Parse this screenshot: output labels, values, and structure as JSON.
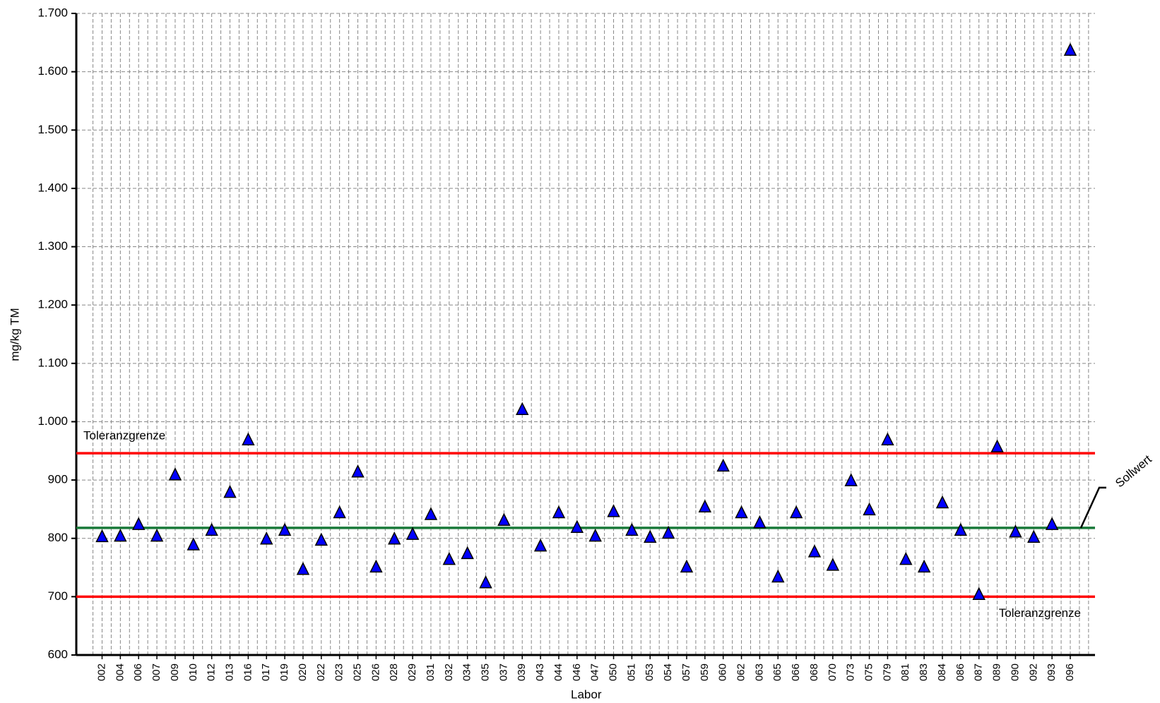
{
  "chart_data": {
    "type": "scatter",
    "xlabel": "Labor",
    "ylabel": "mg/kg TM",
    "categories": [
      "002",
      "004",
      "006",
      "007",
      "009",
      "010",
      "012",
      "013",
      "016",
      "017",
      "019",
      "020",
      "022",
      "023",
      "025",
      "026",
      "028",
      "029",
      "031",
      "032",
      "034",
      "035",
      "037",
      "039",
      "043",
      "044",
      "046",
      "047",
      "050",
      "051",
      "053",
      "054",
      "057",
      "059",
      "060",
      "062",
      "063",
      "065",
      "066",
      "068",
      "070",
      "073",
      "075",
      "079",
      "081",
      "083",
      "084",
      "086",
      "087",
      "089",
      "090",
      "092",
      "093",
      "096"
    ],
    "values": [
      804,
      805,
      825,
      805,
      910,
      790,
      815,
      880,
      970,
      800,
      815,
      748,
      798,
      845,
      915,
      752,
      800,
      808,
      842,
      765,
      775,
      725,
      832,
      1022,
      788,
      845,
      820,
      805,
      847,
      815,
      803,
      810,
      752,
      855,
      925,
      845,
      828,
      735,
      845,
      778,
      755,
      900,
      850,
      970,
      765,
      752,
      862,
      815,
      705,
      958,
      812,
      803,
      825,
      1638
    ],
    "color": "#0000ff",
    "ylim": [
      600,
      1700
    ],
    "yticks": [
      600,
      700,
      800,
      900,
      {
        "value": 1000,
        "label": "1.000"
      },
      {
        "value": 1100,
        "label": "1.100"
      },
      {
        "value": 1200,
        "label": "1.200"
      },
      {
        "value": 1300,
        "label": "1.300"
      },
      {
        "value": 1400,
        "label": "1.400"
      },
      {
        "value": 1500,
        "label": "1.500"
      },
      {
        "value": 1600,
        "label": "1.600"
      },
      {
        "value": 1700,
        "label": "1.700"
      }
    ],
    "grid": true,
    "reference_lines": [
      {
        "label": "Toleranzgrenze",
        "value": 946,
        "color": "#ff0000",
        "label_position": "upper left"
      },
      {
        "label": "Sollwert",
        "value": 818,
        "color": "#1a7a3a",
        "label_position": "right"
      },
      {
        "label": "Toleranzgrenze",
        "value": 700,
        "color": "#ff0000",
        "label_position": "lower right"
      }
    ]
  }
}
